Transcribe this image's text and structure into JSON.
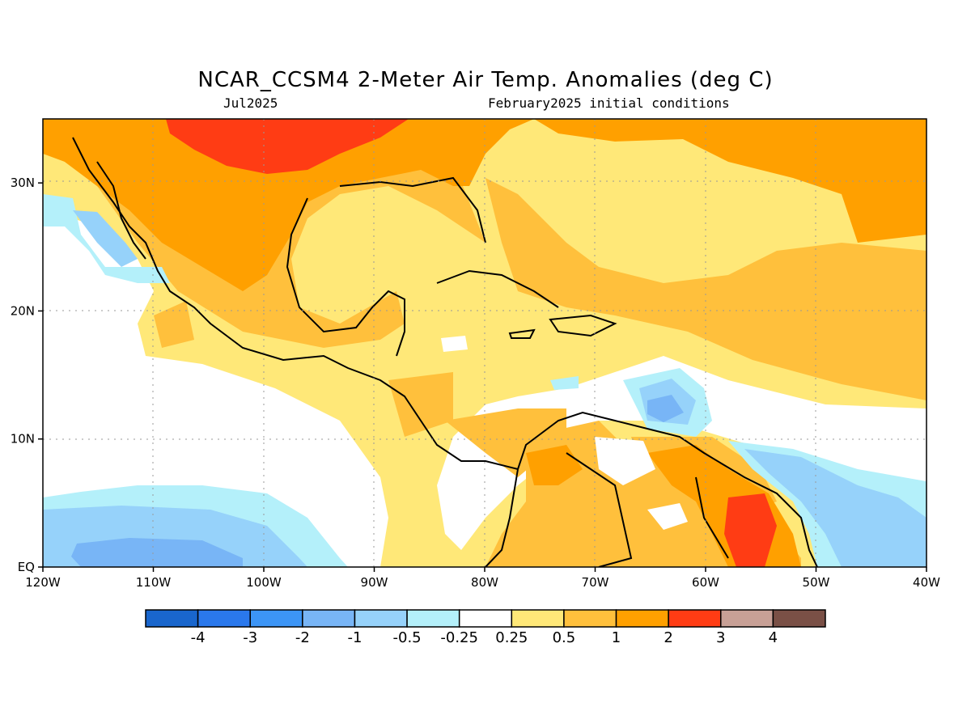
{
  "header": {
    "title": "NCAR_CCSM4 2-Meter Air Temp. Anomalies (deg C)",
    "valid_month": "Jul2025",
    "init": "February2025 initial conditions"
  },
  "axes": {
    "x_ticks": [
      "120W",
      "110W",
      "100W",
      "90W",
      "80W",
      "70W",
      "60W",
      "50W",
      "40W"
    ],
    "y_ticks": [
      "EQ",
      "10N",
      "20N",
      "30N"
    ],
    "lon_range": [
      -120,
      -40
    ],
    "lat_range": [
      0,
      35
    ]
  },
  "colorbar": {
    "colors": [
      "#1966cd",
      "#2a78ec",
      "#3c95f6",
      "#78b5f6",
      "#96d2fa",
      "#b4f0fa",
      "#ffffff",
      "#ffe878",
      "#ffc03c",
      "#ffa000",
      "#ff3c14",
      "#c8a096",
      "#7a5046"
    ],
    "labels": [
      "-4",
      "-3",
      "-2",
      "-1",
      "-0.5",
      "-0.25",
      "0.25",
      "0.5",
      "1",
      "2",
      "3",
      "4"
    ]
  }
}
